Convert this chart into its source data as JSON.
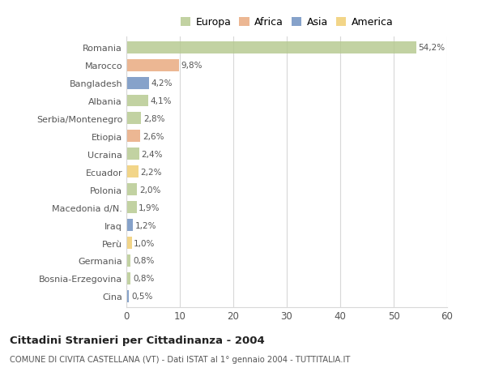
{
  "countries": [
    "Romania",
    "Marocco",
    "Bangladesh",
    "Albania",
    "Serbia/Montenegro",
    "Etiopia",
    "Ucraina",
    "Ecuador",
    "Polonia",
    "Macedonia d/N.",
    "Iraq",
    "Perù",
    "Germania",
    "Bosnia-Erzegovina",
    "Cina"
  ],
  "values": [
    54.2,
    9.8,
    4.2,
    4.1,
    2.8,
    2.6,
    2.4,
    2.2,
    2.0,
    1.9,
    1.2,
    1.0,
    0.8,
    0.8,
    0.5
  ],
  "labels": [
    "54,2%",
    "9,8%",
    "4,2%",
    "4,1%",
    "2,8%",
    "2,6%",
    "2,4%",
    "2,2%",
    "2,0%",
    "1,9%",
    "1,2%",
    "1,0%",
    "0,8%",
    "0,8%",
    "0,5%"
  ],
  "colors": [
    "#b5c98e",
    "#e8a87c",
    "#6b8ebf",
    "#b5c98e",
    "#b5c98e",
    "#e8a87c",
    "#b5c98e",
    "#f0cc6e",
    "#b5c98e",
    "#b5c98e",
    "#6b8ebf",
    "#f0cc6e",
    "#b5c98e",
    "#b5c98e",
    "#6b8ebf"
  ],
  "legend_labels": [
    "Europa",
    "Africa",
    "Asia",
    "America"
  ],
  "legend_colors": [
    "#b5c98e",
    "#e8a87c",
    "#6b8ebf",
    "#f0cc6e"
  ],
  "xlim": [
    0,
    60
  ],
  "xticks": [
    0,
    10,
    20,
    30,
    40,
    50,
    60
  ],
  "title": "Cittadini Stranieri per Cittadinanza - 2004",
  "subtitle": "COMUNE DI CIVITA CASTELLANA (VT) - Dati ISTAT al 1° gennaio 2004 - TUTTITALIA.IT",
  "bg_color": "#ffffff",
  "grid_color": "#d8d8d8",
  "bar_height": 0.68
}
